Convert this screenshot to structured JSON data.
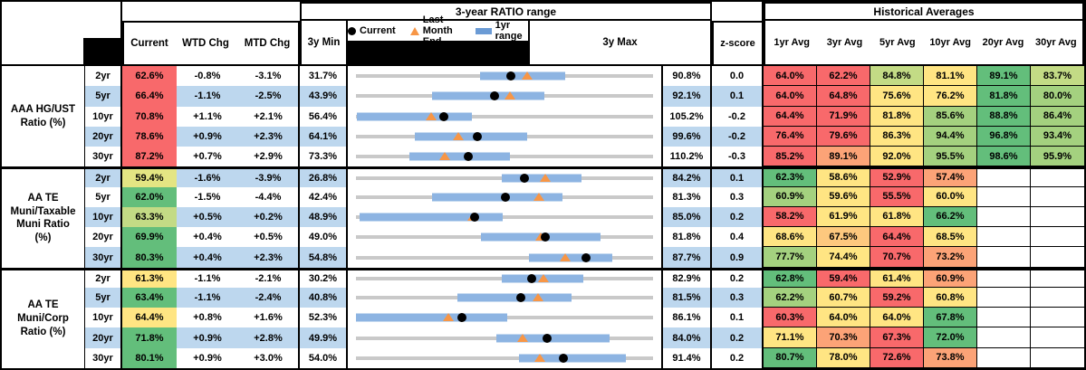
{
  "header": {
    "chart_section_title": "3-year RATIO range",
    "hist_section_title": "Historical Averages",
    "col_current": "Current",
    "col_wtd": "WTD Chg",
    "col_mtd": "MTD Chg",
    "col_3y_min": "3y Min",
    "col_3y_max": "3y Max",
    "col_zscore": "z-score",
    "hist_cols": [
      "1yr Avg",
      "3yr Avg",
      "5yr Avg",
      "10yr Avg",
      "20yr Avg",
      "30yr Avg"
    ]
  },
  "legend": [
    {
      "label": "Current",
      "marker": "black-dot"
    },
    {
      "label": "Last Month End",
      "marker": "orange-triangle"
    },
    {
      "label": "1yr range",
      "marker": "blue-bar"
    }
  ],
  "palette": {
    "r": "#F8696B",
    "o": "#FCA377",
    "yo": "#FDC87E",
    "y": "#FFE583",
    "k": "#E4E583",
    "yg": "#C3DB85",
    "lg": "#A4D17F",
    "g": "#63BE7B",
    "band": "#BDD7EE",
    "bar": "#8DB4E2",
    "legend_bar": "#6B9BD5",
    "track": "#C9C9C9",
    "triangle": "#F79646",
    "dot": "#000000"
  },
  "chart_data": {
    "type": "range",
    "description": "Per-row strip plot: gray track spans 3y min to 3y max, blue bar is the 1yr range, black dot is current, orange triangle is last month end. All values are ratio percents.",
    "groups": [
      {
        "label": "AAA HG/UST\nRatio (%)",
        "rows": [
          {
            "tenor": "2yr",
            "current": 62.6,
            "cc": "r",
            "wtd": "-0.8%",
            "mtd": "-3.1%",
            "min3y": 31.7,
            "max3y": 90.8,
            "yr1_lo": 56.3,
            "yr1_hi": 73.3,
            "lme": 65.7,
            "z": "0.0",
            "hist": [
              [
                "64.0%",
                "r"
              ],
              [
                "62.2%",
                "r"
              ],
              [
                "84.8%",
                "yg"
              ],
              [
                "81.1%",
                "y"
              ],
              [
                "89.1%",
                "g"
              ],
              [
                "83.7%",
                "yg"
              ]
            ]
          },
          {
            "tenor": "5yr",
            "current": 66.4,
            "cc": "r",
            "wtd": "-1.1%",
            "mtd": "-2.5%",
            "min3y": 43.9,
            "max3y": 92.1,
            "yr1_lo": 56.2,
            "yr1_hi": 74.4,
            "lme": 68.9,
            "z": "0.1",
            "hist": [
              [
                "64.0%",
                "r"
              ],
              [
                "64.8%",
                "r"
              ],
              [
                "75.6%",
                "y"
              ],
              [
                "76.2%",
                "y"
              ],
              [
                "81.8%",
                "g"
              ],
              [
                "80.0%",
                "lg"
              ]
            ]
          },
          {
            "tenor": "10yr",
            "current": 70.8,
            "cc": "r",
            "wtd": "+1.1%",
            "mtd": "+2.1%",
            "min3y": 56.4,
            "max3y": 105.2,
            "yr1_lo": 56.5,
            "yr1_hi": 75.5,
            "lme": 68.7,
            "z": "-0.2",
            "hist": [
              [
                "64.4%",
                "r"
              ],
              [
                "71.9%",
                "r"
              ],
              [
                "81.8%",
                "y"
              ],
              [
                "85.6%",
                "lg"
              ],
              [
                "88.8%",
                "g"
              ],
              [
                "86.4%",
                "lg"
              ]
            ]
          },
          {
            "tenor": "20yr",
            "current": 78.6,
            "cc": "r",
            "wtd": "+0.9%",
            "mtd": "+2.3%",
            "min3y": 64.1,
            "max3y": 99.6,
            "yr1_lo": 71.1,
            "yr1_hi": 84.6,
            "lme": 76.3,
            "z": "-0.2",
            "hist": [
              [
                "76.4%",
                "r"
              ],
              [
                "79.6%",
                "r"
              ],
              [
                "86.3%",
                "y"
              ],
              [
                "94.4%",
                "lg"
              ],
              [
                "96.8%",
                "g"
              ],
              [
                "93.4%",
                "lg"
              ]
            ]
          },
          {
            "tenor": "30yr",
            "current": 87.2,
            "cc": "r",
            "wtd": "+0.7%",
            "mtd": "+2.9%",
            "min3y": 73.3,
            "max3y": 110.2,
            "yr1_lo": 79.9,
            "yr1_hi": 92.4,
            "lme": 84.3,
            "z": "-0.3",
            "hist": [
              [
                "85.2%",
                "r"
              ],
              [
                "89.1%",
                "o"
              ],
              [
                "92.0%",
                "y"
              ],
              [
                "95.5%",
                "lg"
              ],
              [
                "98.6%",
                "g"
              ],
              [
                "95.9%",
                "lg"
              ]
            ]
          }
        ]
      },
      {
        "label": "AA TE\nMuni/Taxable\nMuni Ratio\n(%)",
        "rows": [
          {
            "tenor": "2yr",
            "current": 59.4,
            "cc": "k",
            "wtd": "-1.6%",
            "mtd": "-3.9%",
            "min3y": 26.8,
            "max3y": 84.2,
            "yr1_lo": 55.0,
            "yr1_hi": 70.4,
            "lme": 63.3,
            "z": "0.1",
            "hist": [
              [
                "62.3%",
                "g"
              ],
              [
                "58.6%",
                "y"
              ],
              [
                "52.9%",
                "r"
              ],
              [
                "57.4%",
                "o"
              ],
              null,
              null
            ]
          },
          {
            "tenor": "5yr",
            "current": 62.0,
            "cc": "g",
            "wtd": "-1.5%",
            "mtd": "-4.4%",
            "min3y": 42.4,
            "max3y": 81.3,
            "yr1_lo": 52.4,
            "yr1_hi": 69.4,
            "lme": 66.4,
            "z": "0.3",
            "hist": [
              [
                "60.9%",
                "lg"
              ],
              [
                "59.6%",
                "y"
              ],
              [
                "55.5%",
                "r"
              ],
              [
                "60.0%",
                "y"
              ],
              null,
              null
            ]
          },
          {
            "tenor": "10yr",
            "current": 63.3,
            "cc": "yg",
            "wtd": "+0.5%",
            "mtd": "+0.2%",
            "min3y": 48.9,
            "max3y": 85.0,
            "yr1_lo": 49.3,
            "yr1_hi": 66.7,
            "lme": 63.1,
            "z": "0.2",
            "hist": [
              [
                "58.2%",
                "r"
              ],
              [
                "61.9%",
                "y"
              ],
              [
                "61.8%",
                "y"
              ],
              [
                "66.2%",
                "g"
              ],
              null,
              null
            ]
          },
          {
            "tenor": "20yr",
            "current": 69.9,
            "cc": "g",
            "wtd": "+0.4%",
            "mtd": "+0.5%",
            "min3y": 49.0,
            "max3y": 81.8,
            "yr1_lo": 62.8,
            "yr1_hi": 76.0,
            "lme": 69.4,
            "z": "0.4",
            "hist": [
              [
                "68.6%",
                "y"
              ],
              [
                "67.5%",
                "yo"
              ],
              [
                "64.4%",
                "r"
              ],
              [
                "68.5%",
                "y"
              ],
              null,
              null
            ]
          },
          {
            "tenor": "30yr",
            "current": 80.3,
            "cc": "g",
            "wtd": "+0.4%",
            "mtd": "+2.3%",
            "min3y": 54.8,
            "max3y": 87.7,
            "yr1_lo": 74.0,
            "yr1_hi": 83.2,
            "lme": 78.0,
            "z": "0.9",
            "hist": [
              [
                "77.7%",
                "lg"
              ],
              [
                "74.4%",
                "y"
              ],
              [
                "70.7%",
                "r"
              ],
              [
                "73.2%",
                "o"
              ],
              null,
              null
            ]
          }
        ]
      },
      {
        "label": "AA TE\nMuni/Corp\nRatio (%)",
        "rows": [
          {
            "tenor": "2yr",
            "current": 61.3,
            "cc": "y",
            "wtd": "-1.1%",
            "mtd": "-2.1%",
            "min3y": 30.2,
            "max3y": 82.9,
            "yr1_lo": 56.1,
            "yr1_hi": 70.5,
            "lme": 63.4,
            "z": "0.2",
            "hist": [
              [
                "62.8%",
                "g"
              ],
              [
                "59.4%",
                "r"
              ],
              [
                "61.4%",
                "y"
              ],
              [
                "60.9%",
                "o"
              ],
              null,
              null
            ]
          },
          {
            "tenor": "5yr",
            "current": 63.4,
            "cc": "g",
            "wtd": "-1.1%",
            "mtd": "-2.4%",
            "min3y": 40.8,
            "max3y": 81.5,
            "yr1_lo": 54.7,
            "yr1_hi": 70.3,
            "lme": 65.8,
            "z": "0.3",
            "hist": [
              [
                "62.2%",
                "lg"
              ],
              [
                "60.7%",
                "y"
              ],
              [
                "59.2%",
                "r"
              ],
              [
                "60.8%",
                "y"
              ],
              null,
              null
            ]
          },
          {
            "tenor": "10yr",
            "current": 64.4,
            "cc": "y",
            "wtd": "+0.8%",
            "mtd": "+1.6%",
            "min3y": 52.3,
            "max3y": 86.1,
            "yr1_lo": 52.3,
            "yr1_hi": 69.5,
            "lme": 62.8,
            "z": "0.1",
            "hist": [
              [
                "60.3%",
                "r"
              ],
              [
                "64.0%",
                "y"
              ],
              [
                "64.0%",
                "y"
              ],
              [
                "67.8%",
                "g"
              ],
              null,
              null
            ]
          },
          {
            "tenor": "20yr",
            "current": 71.8,
            "cc": "g",
            "wtd": "+0.9%",
            "mtd": "+2.8%",
            "min3y": 49.9,
            "max3y": 84.0,
            "yr1_lo": 66.0,
            "yr1_hi": 79.0,
            "lme": 69.0,
            "z": "0.2",
            "hist": [
              [
                "71.1%",
                "y"
              ],
              [
                "70.3%",
                "o"
              ],
              [
                "67.3%",
                "r"
              ],
              [
                "72.0%",
                "g"
              ],
              null,
              null
            ]
          },
          {
            "tenor": "30yr",
            "current": 80.1,
            "cc": "g",
            "wtd": "+0.9%",
            "mtd": "+3.0%",
            "min3y": 54.0,
            "max3y": 91.4,
            "yr1_lo": 74.5,
            "yr1_hi": 88.0,
            "lme": 77.1,
            "z": "0.2",
            "hist": [
              [
                "80.7%",
                "g"
              ],
              [
                "78.0%",
                "y"
              ],
              [
                "72.6%",
                "r"
              ],
              [
                "73.8%",
                "o"
              ],
              null,
              null
            ]
          }
        ]
      }
    ]
  }
}
